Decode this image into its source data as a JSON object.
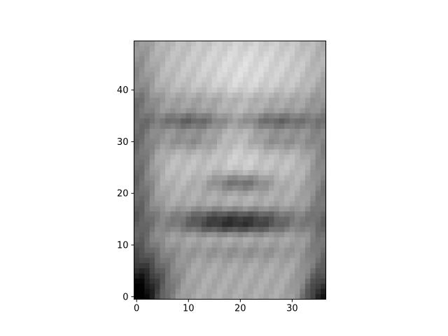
{
  "chart_data": {
    "type": "heatmap",
    "colormap": "gray",
    "image_shape": [
      50,
      37
    ],
    "x": [
      0,
      10,
      20,
      30
    ],
    "y": [
      0,
      10,
      20,
      30,
      40
    ],
    "xlim": [
      -0.5,
      36.5
    ],
    "ylim": [
      49.5,
      -0.5
    ],
    "grid": false,
    "xticks": [
      {
        "value": 0,
        "label": "0"
      },
      {
        "value": 10,
        "label": "10"
      },
      {
        "value": 20,
        "label": "20"
      },
      {
        "value": 30,
        "label": "30"
      }
    ],
    "yticks": [
      {
        "value": 0,
        "label": "0"
      },
      {
        "value": 10,
        "label": "10"
      },
      {
        "value": 20,
        "label": "20"
      },
      {
        "value": 30,
        "label": "30"
      },
      {
        "value": 40,
        "label": "40"
      }
    ],
    "colors": {
      "frame": "#000000",
      "background": "#ffffff"
    }
  }
}
